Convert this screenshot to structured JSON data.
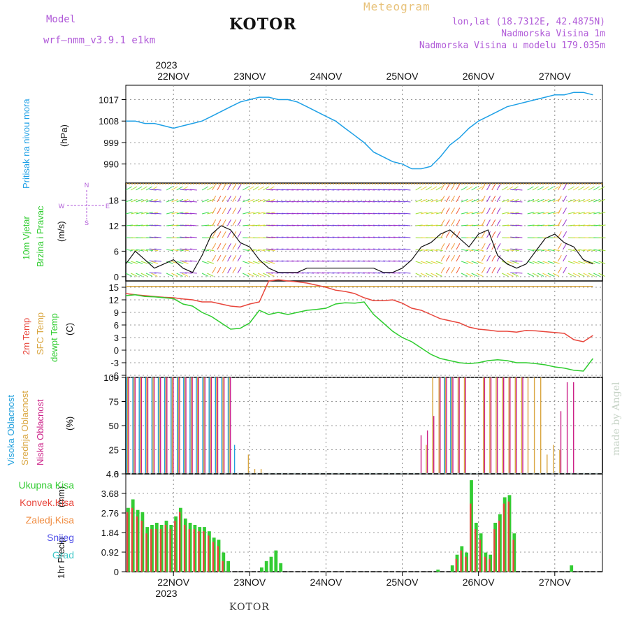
{
  "header": {
    "model_label": "Model",
    "model_value": "wrf–nmm_v3.9.1  e1km",
    "title": "KOTOR",
    "meteogram_label": "Meteogram",
    "coords": "lon,lat (18.7312E, 42.4875N)",
    "altitude": "Nadmorska Visina 1m",
    "model_altitude": "Nadmorska Visina u modelu 179.035m"
  },
  "footer": {
    "location": "KOTOR",
    "credit": "made by Angel"
  },
  "time_axis": {
    "year": "2023",
    "days": [
      "22NOV",
      "23NOV",
      "24NOV",
      "25NOV",
      "26NOV",
      "27NOV"
    ]
  },
  "wind_compass": {
    "north": "N",
    "south": "S",
    "west": "W",
    "east": "E"
  },
  "colors": {
    "pressure": "#1ea0e6",
    "temp2m": "#e8463c",
    "sfc_temp": "#d9a640",
    "dewpoint": "#2ecc2e",
    "high_cloud": "#22a0dd",
    "mid_cloud": "#d9a640",
    "low_cloud": "#cc2288",
    "precip_total": "#33cc33",
    "precip_conv": "#e8463c",
    "wind_gust": "#111111",
    "wind_marker": "#e8463c"
  },
  "panels": {
    "pressure": {
      "label": "Pritisak na nivou mora",
      "unit": "(hPa)"
    },
    "wind": {
      "label_line1": "10m Vjetar",
      "label_line2": "Brzina i Pravac",
      "unit": "(m/s)"
    },
    "temperature": {
      "label_2m": "2m Temp",
      "label_sfc": "SFC Temp",
      "label_dew": "dewpt Temp",
      "unit": "(C)"
    },
    "clouds": {
      "label_high": "Visoka Oblacnost",
      "label_mid": "Srednja Oblacnost",
      "label_low": "Niska Oblacnost",
      "unit": "(%)"
    },
    "precip": {
      "label": "1hr Precip",
      "unit": "(mm)",
      "legend": [
        "Ukupna Kisa",
        "Konvek.Kisa",
        "Zaledj.Kisa",
        "Snijeg",
        "Grad"
      ],
      "legend_colors": [
        "#33cc33",
        "#e8463c",
        "#f08c40",
        "#5050e8",
        "#40c8c8"
      ]
    }
  },
  "chart_data": [
    {
      "type": "line",
      "name": "pressure",
      "x": [
        0,
        3,
        6,
        9,
        12,
        15,
        18,
        21,
        24,
        27,
        30,
        33,
        36,
        39,
        42,
        45,
        48,
        51,
        54,
        57,
        60,
        63,
        66,
        69,
        72,
        75,
        78,
        81,
        84,
        87,
        90,
        93,
        96,
        99,
        102,
        105,
        108,
        111,
        114,
        117,
        120,
        123,
        126,
        129,
        132,
        135,
        138,
        141,
        144,
        147
      ],
      "series": [
        {
          "values": [
            1008,
            1008,
            1007,
            1007,
            1006,
            1005,
            1006,
            1007,
            1008,
            1010,
            1012,
            1014,
            1016,
            1017,
            1018,
            1018,
            1017,
            1017,
            1016,
            1014,
            1012,
            1010,
            1008,
            1005,
            1002,
            999,
            995,
            993,
            991,
            990,
            988,
            988,
            989,
            993,
            998,
            1001,
            1005,
            1008,
            1010,
            1012,
            1014,
            1015,
            1016,
            1017,
            1018,
            1019,
            1019,
            1020,
            1020,
            1019
          ]
        }
      ],
      "yticks": [
        990,
        999,
        1008,
        1017
      ],
      "ylim": [
        982,
        1023
      ]
    },
    {
      "type": "line",
      "name": "wind",
      "x": [
        0,
        3,
        6,
        9,
        12,
        15,
        18,
        21,
        24,
        27,
        30,
        33,
        36,
        39,
        42,
        45,
        48,
        51,
        54,
        57,
        60,
        63,
        66,
        69,
        72,
        75,
        78,
        81,
        84,
        87,
        90,
        93,
        96,
        99,
        102,
        105,
        108,
        111,
        114,
        117,
        120,
        123,
        126,
        129,
        132,
        135,
        138,
        141,
        144,
        147
      ],
      "series": [
        {
          "values": [
            3,
            6,
            4,
            2,
            3,
            4,
            2,
            1,
            5,
            10,
            12,
            11,
            8,
            7,
            4,
            2,
            1,
            1,
            1,
            2,
            2,
            2,
            2,
            2,
            2,
            2,
            2,
            1,
            1,
            2,
            4,
            7,
            8,
            10,
            11,
            9,
            7,
            10,
            11,
            5,
            3,
            2,
            3,
            6,
            9,
            10,
            8,
            7,
            4,
            3
          ]
        }
      ],
      "yticks": [
        0,
        6,
        12,
        18
      ],
      "ylim": [
        -1,
        22
      ]
    },
    {
      "type": "line",
      "name": "temperature",
      "x": [
        0,
        3,
        6,
        9,
        12,
        15,
        18,
        21,
        24,
        27,
        30,
        33,
        36,
        39,
        42,
        45,
        48,
        51,
        54,
        57,
        60,
        63,
        66,
        69,
        72,
        75,
        78,
        81,
        84,
        87,
        90,
        93,
        96,
        99,
        102,
        105,
        108,
        111,
        114,
        117,
        120,
        123,
        126,
        129,
        132,
        135,
        138,
        141,
        144,
        147
      ],
      "series": [
        {
          "values": [
            13.5,
            13.2,
            13.0,
            12.8,
            12.6,
            12.5,
            12.2,
            12.0,
            11.5,
            11.5,
            11.0,
            10.5,
            10.3,
            11.0,
            11.5,
            16.5,
            16.8,
            16.5,
            16.3,
            16.0,
            15.5,
            15.0,
            14.3,
            14.0,
            13.5,
            12.5,
            11.8,
            11.8,
            12.0,
            11.2,
            10.0,
            9.5,
            8.5,
            7.5,
            7.0,
            6.5,
            5.5,
            5.0,
            4.8,
            4.5,
            4.5,
            4.3,
            4.7,
            4.6,
            4.4,
            4.2,
            4.0,
            2.5,
            2.0,
            3.5
          ]
        },
        {
          "values": [
            15.2,
            15.2,
            15.2,
            15.2,
            15.2,
            15.2,
            15.2,
            15.2,
            15.2,
            15.2,
            15.2,
            15.2,
            15.2,
            15.2,
            15.2,
            15.2,
            15.2,
            15.2,
            15.2,
            15.2,
            15.2,
            15.2,
            15.2,
            15.2,
            15.2,
            15.2,
            15.2,
            15.2,
            15.2,
            15.2,
            15.2,
            15.2,
            15.2,
            15.2,
            15.2,
            15.2,
            15.2,
            15.2,
            15.2,
            15.2,
            15.2,
            15.2,
            15.2,
            15.2,
            15.2,
            15.2,
            15.2,
            15.2,
            15.2,
            15.2
          ]
        },
        {
          "values": [
            13.0,
            13.2,
            12.8,
            12.7,
            12.5,
            12.3,
            11.0,
            10.5,
            9.0,
            8.0,
            6.5,
            5.0,
            5.2,
            6.5,
            9.5,
            8.5,
            9.0,
            8.5,
            9.0,
            9.5,
            9.7,
            10.0,
            11.0,
            11.3,
            11.2,
            11.5,
            8.5,
            6.5,
            4.5,
            3.0,
            2.0,
            0.5,
            -1.0,
            -2.0,
            -2.5,
            -3.0,
            -3.2,
            -3.0,
            -2.5,
            -2.3,
            -2.5,
            -3.0,
            -3.0,
            -3.2,
            -3.5,
            -4.0,
            -4.3,
            -4.8,
            -5.0,
            -2.0
          ]
        }
      ],
      "yticks": [
        -6,
        -3,
        0,
        3,
        6,
        9,
        12,
        15
      ],
      "ylim": [
        -6.5,
        16.5
      ]
    },
    {
      "type": "bar",
      "name": "clouds",
      "x": [
        0,
        2,
        4,
        6,
        8,
        10,
        12,
        14,
        16,
        18,
        20,
        22,
        24,
        26,
        28,
        30,
        32,
        34,
        36,
        38,
        40,
        42,
        44,
        46,
        48,
        50,
        52,
        54,
        56,
        58,
        60,
        62,
        64,
        66,
        68,
        70,
        72,
        74,
        76,
        78,
        80,
        82,
        84,
        86,
        88,
        90,
        92,
        94,
        96,
        98,
        100,
        102,
        104,
        106,
        108,
        110,
        112,
        114,
        116,
        118,
        120,
        122,
        124,
        126,
        128,
        130,
        132,
        134,
        136,
        138,
        140,
        142,
        144,
        146
      ],
      "series": [
        {
          "values": [
            100,
            100,
            100,
            100,
            100,
            100,
            100,
            100,
            100,
            100,
            100,
            100,
            100,
            100,
            100,
            100,
            100,
            30,
            0,
            0,
            0,
            0,
            0,
            0,
            0,
            0,
            0,
            0,
            0,
            0,
            0,
            0,
            0,
            0,
            0,
            0,
            0,
            0,
            0,
            0,
            0,
            0,
            0,
            0,
            0,
            0,
            0,
            0,
            0,
            0,
            100,
            100,
            0,
            0,
            0,
            0,
            0,
            0,
            0,
            0,
            0,
            0,
            0,
            0,
            0,
            0,
            0,
            0,
            0,
            0,
            0,
            0,
            0,
            0
          ]
        },
        {
          "values": [
            100,
            100,
            100,
            100,
            100,
            100,
            100,
            100,
            100,
            100,
            100,
            100,
            100,
            100,
            100,
            100,
            100,
            0,
            0,
            20,
            5,
            5,
            0,
            0,
            0,
            0,
            0,
            0,
            0,
            0,
            0,
            0,
            0,
            0,
            0,
            0,
            0,
            0,
            0,
            0,
            0,
            0,
            0,
            0,
            0,
            0,
            0,
            30,
            100,
            100,
            100,
            100,
            100,
            100,
            0,
            0,
            100,
            100,
            100,
            100,
            100,
            100,
            100,
            100,
            100,
            100,
            20,
            30,
            25,
            0,
            0,
            0,
            0,
            0
          ]
        },
        {
          "values": [
            100,
            100,
            100,
            100,
            100,
            100,
            100,
            100,
            100,
            100,
            100,
            100,
            100,
            100,
            100,
            100,
            100,
            0,
            0,
            0,
            0,
            0,
            0,
            0,
            0,
            0,
            0,
            0,
            0,
            0,
            0,
            0,
            0,
            0,
            0,
            0,
            0,
            0,
            0,
            0,
            0,
            0,
            0,
            0,
            0,
            0,
            40,
            45,
            60,
            100,
            100,
            100,
            100,
            100,
            0,
            0,
            100,
            100,
            100,
            100,
            100,
            100,
            100,
            0,
            0,
            0,
            0,
            0,
            65,
            95,
            95,
            0,
            0,
            0
          ]
        }
      ],
      "yticks": [
        0,
        25,
        50,
        75,
        100
      ],
      "ylim": [
        0,
        100
      ]
    },
    {
      "type": "bar",
      "name": "precip",
      "x": [
        0,
        1,
        2,
        3,
        4,
        5,
        6,
        7,
        8,
        9,
        10,
        11,
        12,
        13,
        14,
        15,
        16,
        17,
        18,
        19,
        20,
        21,
        22,
        23,
        24,
        25,
        26,
        27,
        28,
        29,
        30,
        31,
        32,
        33,
        34,
        35,
        36,
        37,
        38,
        39,
        40,
        41,
        42,
        43,
        44,
        45,
        46,
        47,
        48,
        49,
        50,
        51,
        52,
        53,
        54,
        55,
        56,
        57,
        58,
        59,
        60,
        61,
        62,
        63,
        64,
        65,
        66,
        67,
        68,
        69,
        70,
        71,
        72,
        73,
        74,
        75,
        76,
        77,
        78,
        79,
        80,
        81,
        82,
        83,
        84,
        85,
        86,
        87,
        88,
        89,
        90,
        91,
        92,
        93,
        94,
        95
      ],
      "series": [
        {
          "values": [
            3.0,
            3.4,
            2.9,
            2.8,
            2.1,
            2.2,
            2.3,
            2.2,
            2.4,
            2.2,
            2.6,
            3.0,
            2.5,
            2.3,
            2.2,
            2.1,
            2.1,
            1.9,
            1.6,
            1.5,
            0.9,
            0.5,
            0,
            0,
            0,
            0,
            0,
            0,
            0.2,
            0.5,
            0.7,
            1.0,
            0.4,
            0,
            0,
            0,
            0,
            0,
            0,
            0,
            0,
            0,
            0,
            0,
            0,
            0,
            0,
            0,
            0,
            0,
            0,
            0,
            0,
            0,
            0,
            0,
            0,
            0,
            0,
            0,
            0,
            0,
            0,
            0,
            0,
            0.1,
            0,
            0,
            0.3,
            0.8,
            1.2,
            0.9,
            4.3,
            2.3,
            1.8,
            0.9,
            0.8,
            2.3,
            2.7,
            3.5,
            3.6,
            1.8,
            0,
            0,
            0,
            0,
            0,
            0,
            0,
            0,
            0,
            0,
            0,
            0.3,
            0,
            0
          ]
        },
        {
          "values": [
            2.8,
            3.0,
            2.6,
            2.4,
            1.8,
            2.0,
            2.0,
            2.0,
            2.2,
            2.0,
            2.4,
            2.8,
            2.2,
            2.0,
            2.0,
            1.9,
            1.9,
            1.7,
            1.4,
            1.2,
            0.5,
            0,
            0,
            0,
            0,
            0,
            0,
            0,
            0,
            0,
            0,
            0,
            0,
            0,
            0,
            0,
            0,
            0,
            0,
            0,
            0,
            0,
            0,
            0,
            0,
            0,
            0,
            0,
            0,
            0,
            0,
            0,
            0,
            0,
            0,
            0,
            0,
            0,
            0,
            0,
            0,
            0,
            0,
            0,
            0,
            0,
            0,
            0,
            0,
            0.6,
            1.0,
            0.7,
            3.2,
            2.0,
            1.5,
            0.7,
            0.6,
            2.0,
            2.4,
            3.2,
            3.3,
            1.5,
            0,
            0,
            0,
            0,
            0,
            0,
            0,
            0,
            0,
            0,
            0,
            0,
            0,
            0
          ]
        }
      ],
      "yticks": [
        0,
        0.92,
        1.84,
        2.76,
        3.68,
        4.6
      ],
      "ylim": [
        0,
        4.6
      ]
    }
  ]
}
